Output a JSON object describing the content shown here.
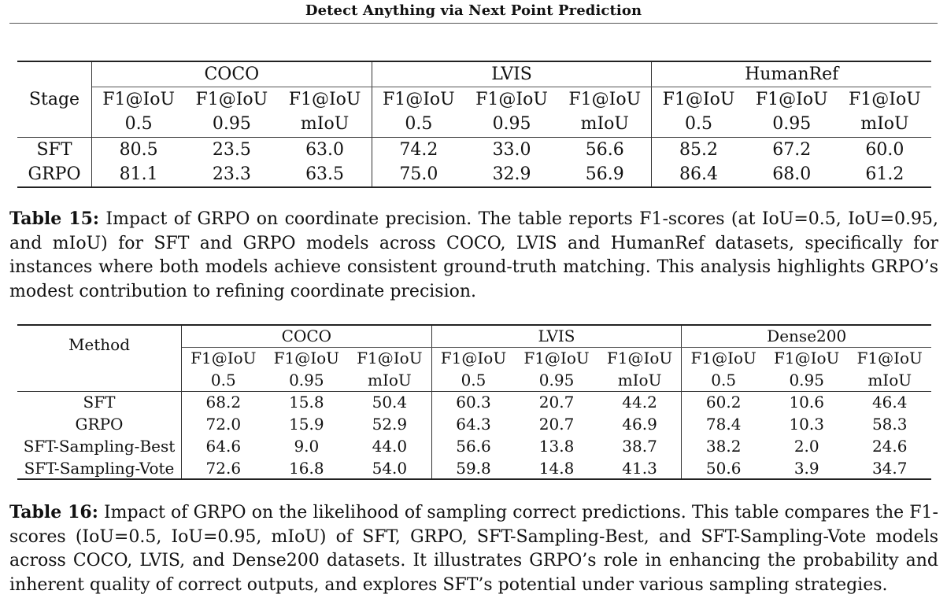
{
  "header": {
    "running_title": "Detect Anything via Next Point Prediction"
  },
  "table15": {
    "row_header": "Stage",
    "groups": [
      "COCO",
      "LVIS",
      "HumanRef"
    ],
    "metrics_line1": [
      "F1@IoU",
      "F1@IoU",
      "F1@IoU",
      "F1@IoU",
      "F1@IoU",
      "F1@IoU",
      "F1@IoU",
      "F1@IoU",
      "F1@IoU"
    ],
    "metrics_line2": [
      "0.5",
      "0.95",
      "mIoU",
      "0.5",
      "0.95",
      "mIoU",
      "0.5",
      "0.95",
      "mIoU"
    ],
    "rows": [
      {
        "label": "SFT",
        "values": [
          "80.5",
          "23.5",
          "63.0",
          "74.2",
          "33.0",
          "56.6",
          "85.2",
          "67.2",
          "60.0"
        ]
      },
      {
        "label": "GRPO",
        "values": [
          "81.1",
          "23.3",
          "63.5",
          "75.0",
          "32.9",
          "56.9",
          "86.4",
          "68.0",
          "61.2"
        ]
      }
    ],
    "caption_label": "Table 15:",
    "caption_text": "Impact of GRPO on coordinate precision. The table reports F1-scores (at IoU=0.5, IoU=0.95, and mIoU) for SFT and GRPO models across COCO, LVIS and HumanRef datasets, specifically for instances where both models achieve consistent ground-truth matching. This analysis highlights GRPO’s modest contribution to refining coordinate precision."
  },
  "table16": {
    "row_header": "Method",
    "groups": [
      "COCO",
      "LVIS",
      "Dense200"
    ],
    "metrics_line1": [
      "F1@IoU",
      "F1@IoU",
      "F1@IoU",
      "F1@IoU",
      "F1@IoU",
      "F1@IoU",
      "F1@IoU",
      "F1@IoU",
      "F1@IoU"
    ],
    "metrics_line2": [
      "0.5",
      "0.95",
      "mIoU",
      "0.5",
      "0.95",
      "mIoU",
      "0.5",
      "0.95",
      "mIoU"
    ],
    "rows": [
      {
        "label": "SFT",
        "values": [
          "68.2",
          "15.8",
          "50.4",
          "60.3",
          "20.7",
          "44.2",
          "60.2",
          "10.6",
          "46.4"
        ]
      },
      {
        "label": "GRPO",
        "values": [
          "72.0",
          "15.9",
          "52.9",
          "64.3",
          "20.7",
          "46.9",
          "78.4",
          "10.3",
          "58.3"
        ]
      },
      {
        "label": "SFT-Sampling-Best",
        "values": [
          "64.6",
          "9.0",
          "44.0",
          "56.6",
          "13.8",
          "38.7",
          "38.2",
          "2.0",
          "24.6"
        ]
      },
      {
        "label": "SFT-Sampling-Vote",
        "values": [
          "72.6",
          "16.8",
          "54.0",
          "59.8",
          "14.8",
          "41.3",
          "50.6",
          "3.9",
          "34.7"
        ]
      }
    ],
    "caption_label": "Table 16:",
    "caption_text": "Impact of GRPO on the likelihood of sampling correct predictions. This table compares the F1-scores (IoU=0.5, IoU=0.95, mIoU) of SFT, GRPO, SFT-Sampling-Best, and SFT-Sampling-Vote models across COCO, LVIS, and Dense200 datasets. It illustrates GRPO’s role in enhancing the probability and inherent quality of correct outputs, and explores SFT’s potential under various sampling strategies."
  }
}
